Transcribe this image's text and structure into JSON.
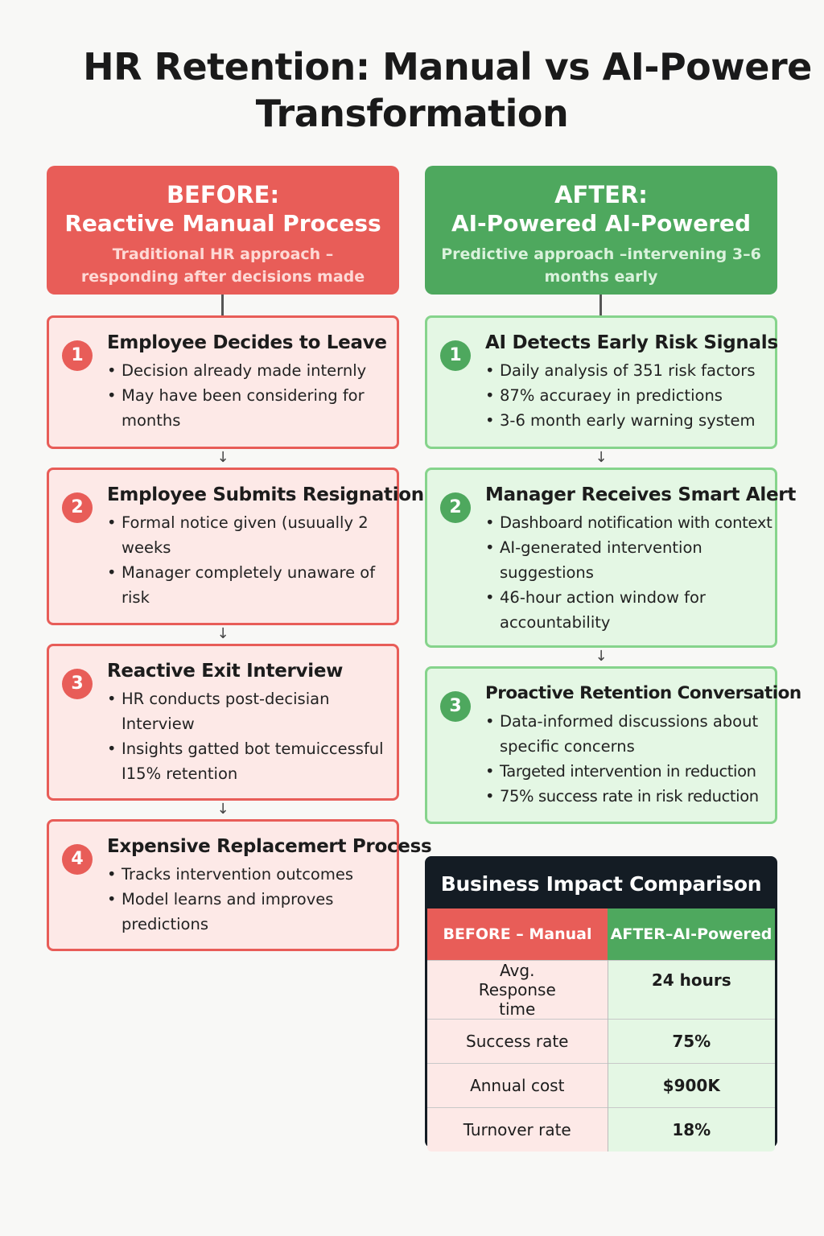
{
  "title": {
    "line1": "HR Retention: Manual vs AI-Powere",
    "line2": "Transformation"
  },
  "before": {
    "heading": "BEFORE:",
    "subheading": "Reactive Manual Process",
    "description": "Traditional HR approach – responding after decisions made",
    "color": "#e85d58",
    "steps": [
      {
        "num": "1",
        "title": "Employee Decides to Leave",
        "bullets": [
          "Decision already made internly",
          "May have been considering for months"
        ]
      },
      {
        "num": "2",
        "title": "Employee Submits Resignation",
        "bullets": [
          "Formal notice given (usuually 2 weeks",
          "Manager completely unaware of risk"
        ]
      },
      {
        "num": "3",
        "title": "Reactive Exit Interview",
        "bullets": [
          "HR conducts post-decisian Interview",
          "Insights gatted bot temuiccessful I15% retention"
        ]
      },
      {
        "num": "4",
        "title": "Expensive Replacemert Process",
        "bullets": [
          "Tracks intervention outcomes",
          "Model learns and improves predictions"
        ]
      }
    ]
  },
  "after": {
    "heading": "AFTER:",
    "subheading": "AI-Powered AI-Powered",
    "description": "Predictive approach –intervening 3–6 months early",
    "color": "#4ea85e",
    "steps": [
      {
        "num": "1",
        "title": "AI Detects Early Risk Signals",
        "bullets": [
          "Daily analysis of 351 risk factors",
          "87% accuraey in predictions",
          "3-6 month early warning system"
        ]
      },
      {
        "num": "2",
        "title": "Manager Receives Smart Alert",
        "bullets": [
          "Dashboard notification with context",
          "AI-generated intervention suggestions",
          "46-hour action window for accountability"
        ]
      },
      {
        "num": "3",
        "title": "Proactive Retention Conversation",
        "bullets": [
          "Data-informed discussions about specific concerns",
          "Targeted intervention in reduction",
          "75% success rate in risk reduction"
        ]
      }
    ]
  },
  "impact": {
    "title": "Business Impact Comparison",
    "header_before": "BEFORE – Manual",
    "header_after": "AFTER–AI-Powered",
    "rows": [
      {
        "metric": "Avg. Response time",
        "after": "24 hours"
      },
      {
        "metric": "Success rate",
        "after": "75%"
      },
      {
        "metric": "Annual cost",
        "after": "$900K"
      },
      {
        "metric": "Turnover rate",
        "after": "18%"
      }
    ]
  }
}
